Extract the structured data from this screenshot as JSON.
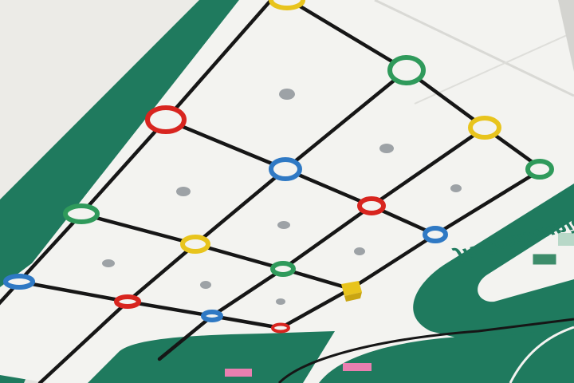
{
  "scene": {
    "mat_text": "JR Communication Design",
    "colors": {
      "mat_white": "#f3f3f0",
      "mat_green": "#1f7a5e",
      "line_black": "#161616",
      "red": "#d8251f",
      "green": "#2f9a5b",
      "blue": "#2f79c4",
      "yellow": "#e8c41d",
      "dot_gray": "#9da2a6",
      "backdrop": "#e4e4e0"
    },
    "ring_grid": [
      [
        "yellow",
        "green",
        "yellow",
        "green"
      ],
      [
        "red",
        "blue",
        "red",
        "blue"
      ],
      [
        "green",
        "yellow",
        "green",
        "yellow"
      ],
      [
        "blue",
        "red",
        "blue",
        "red"
      ]
    ]
  }
}
